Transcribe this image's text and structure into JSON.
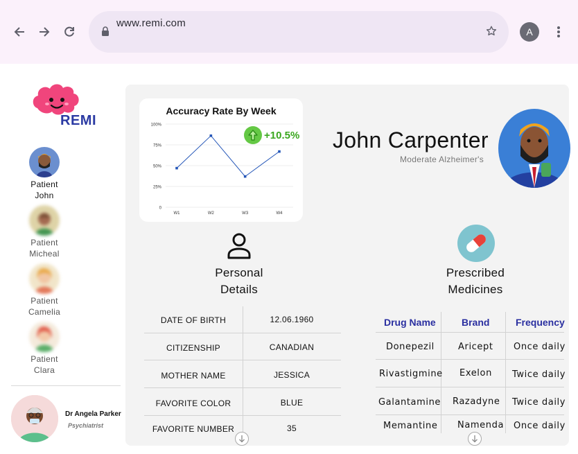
{
  "browser": {
    "url": "www.remi.com",
    "profile_initial": "A"
  },
  "sidebar": {
    "brand": "REMI",
    "patients": [
      {
        "label": "Patient John",
        "line1": "Patient",
        "line2": "John",
        "active": true
      },
      {
        "label": "Patient Micheal",
        "line1": "Patient",
        "line2": "Micheal",
        "active": false
      },
      {
        "label": "Patient Camelia",
        "line1": "Patient",
        "line2": "Camelia",
        "active": false
      },
      {
        "label": "Patient Clara",
        "line1": "Patient",
        "line2": "Clara",
        "active": false
      }
    ],
    "doctor": {
      "name": "Dr Angela Parker",
      "role": "Psychiatrist"
    }
  },
  "chart_data": {
    "type": "line",
    "title": "Accuracy Rate By Week",
    "categories": [
      "W1",
      "W2",
      "W3",
      "W4"
    ],
    "values": [
      47,
      86,
      37,
      67
    ],
    "yticks": [
      "0",
      "25%",
      "50%",
      "75%",
      "100%"
    ],
    "ylim": [
      0,
      100
    ],
    "color": "#2456b8"
  },
  "trend": {
    "text": "+10.5%",
    "color": "#3aa71e"
  },
  "patient": {
    "name": "John Carpenter",
    "condition": "Moderate Alzheimer's"
  },
  "personal": {
    "title_line1": "Personal",
    "title_line2": "Details",
    "rows": [
      {
        "key": "DATE OF BIRTH",
        "value": "12.06.1960"
      },
      {
        "key": "CITIZENSHIP",
        "value": "CANADIAN"
      },
      {
        "key": "MOTHER NAME",
        "value": "JESSICA"
      },
      {
        "key": "FAVORITE COLOR",
        "value": "BLUE"
      },
      {
        "key": "FAVORITE NUMBER",
        "value": "35"
      }
    ]
  },
  "medicines": {
    "title_line1": "Prescribed",
    "title_line2": "Medicines",
    "headers": [
      "Drug Name",
      "Brand",
      "Frequency"
    ],
    "rows": [
      {
        "drug": "Donepezil",
        "brand": "Aricept",
        "frequency": "Once daily"
      },
      {
        "drug": "Rivastigmine",
        "brand": "Exelon",
        "frequency": "Twice daily"
      },
      {
        "drug": "Galantamine",
        "brand": "Razadyne",
        "frequency": "Twice daily"
      },
      {
        "drug": "Memantine",
        "brand": "Namenda",
        "frequency": "Once daily"
      }
    ]
  },
  "colors": {
    "brand_blue": "#2b3aa3",
    "header_blue": "#2a2fa0",
    "brand_pink": "#f0457c"
  }
}
